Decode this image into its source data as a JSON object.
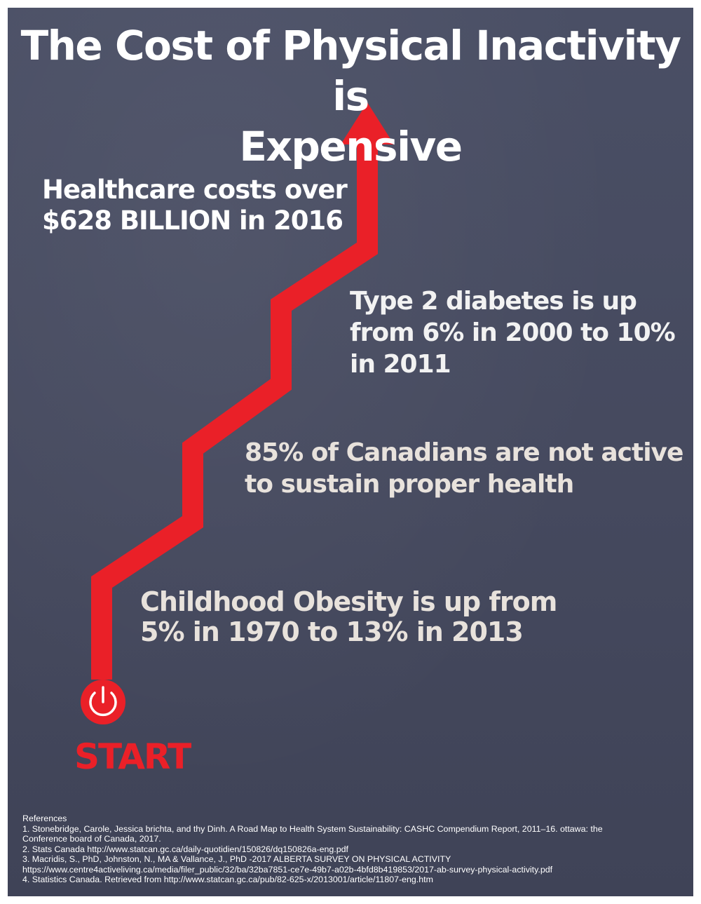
{
  "title": {
    "line1": "The Cost of Physical Inactivity is",
    "line2": "Expensive"
  },
  "stats": {
    "healthcare": {
      "line1": "Healthcare costs over",
      "line2": "$628 BILLION in 2016"
    },
    "diabetes": {
      "line1": "Type 2 diabetes is up",
      "line2": "from 6% in 2000 to 10%",
      "line3": "in 2011"
    },
    "active": {
      "line1": "85% of Canadians are not active",
      "line2": "to sustain proper health"
    },
    "obesity": {
      "line1": "Childhood Obesity is up from",
      "line2": "5% in 1970 to 13% in 2013"
    }
  },
  "start_label": "START",
  "icons": {
    "power": "power-icon",
    "arrow": "arrow-up-icon"
  },
  "colors": {
    "accent": "#ea2028",
    "background": "#474b60",
    "text": "#ffffff"
  },
  "references": {
    "heading": "References",
    "items": [
      "1.  Stonebridge, Carole, Jessica brichta, and thy Dinh. A Road Map to Health System Sustainability: CASHC Compendium Report, 2011–16. ottawa: the",
      "Conference board of Canada, 2017.",
      "2.  Stats Canada  http://www.statcan.gc.ca/daily-quotidien/150826/dq150826a-eng.pdf",
      "3.  Macridis, S., PhD, Johnston, N., MA & Vallance, J., PhD -2017 ALBERTA SURVEY ON PHYSICAL ACTIVITY",
      "https://www.centre4activeliving.ca/media/filer_public/32/ba/32ba7851-ce7e-49b7-a02b-4bfd8b419853/2017-ab-survey-physical-activity.pdf",
      "4.  Statistics Canada. Retrieved from http://www.statcan.gc.ca/pub/82-625-x/2013001/article/11807-eng.htm"
    ]
  }
}
